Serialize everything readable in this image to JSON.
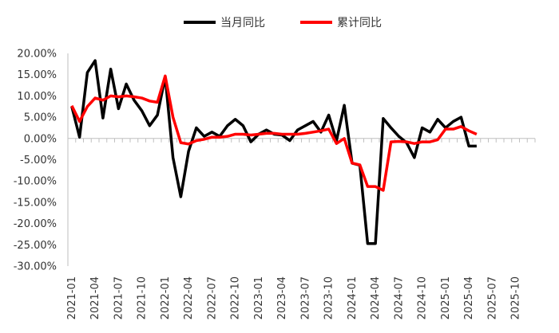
{
  "chart_data": {
    "type": "line",
    "legend_position": "top",
    "grid": false,
    "ylim": [
      -0.3,
      0.2
    ],
    "y_ticks": [
      "20.00%",
      "15.00%",
      "10.00%",
      "5.00%",
      "0.00%",
      "-5.00%",
      "-10.00%",
      "-15.00%",
      "-20.00%",
      "-25.00%",
      "-30.00%"
    ],
    "x_tick_labels": [
      "2021-01",
      "2021-04",
      "2021-07",
      "2021-10",
      "2022-01",
      "2022-04",
      "2022-07",
      "2022-10",
      "2023-01",
      "2023-04",
      "2023-07",
      "2023-10",
      "2024-01",
      "2024-04",
      "2024-07",
      "2024-10",
      "2025-01",
      "2025-04",
      "2025-07",
      "2025-10"
    ],
    "x": [
      "2021-01",
      "2021-02",
      "2021-03",
      "2021-04",
      "2021-05",
      "2021-06",
      "2021-07",
      "2021-08",
      "2021-09",
      "2021-10",
      "2021-11",
      "2021-12",
      "2022-01",
      "2022-02",
      "2022-03",
      "2022-04",
      "2022-05",
      "2022-06",
      "2022-07",
      "2022-08",
      "2022-09",
      "2022-10",
      "2022-11",
      "2022-12",
      "2023-01",
      "2023-02",
      "2023-03",
      "2023-04",
      "2023-05",
      "2023-06",
      "2023-07",
      "2023-08",
      "2023-09",
      "2023-10",
      "2023-11",
      "2023-12",
      "2024-01",
      "2024-02",
      "2024-03",
      "2024-04",
      "2024-05",
      "2024-06",
      "2024-07",
      "2024-08",
      "2024-09",
      "2024-10",
      "2024-11",
      "2024-12",
      "2025-01",
      "2025-02",
      "2025-03",
      "2025-04",
      "2025-05",
      "2025-06",
      "2025-07",
      "2025-08",
      "2025-09",
      "2025-10",
      "2025-11",
      "2025-12"
    ],
    "series": [
      {
        "name": "当月同比",
        "color": "#000000",
        "values": [
          0.075,
          0.003,
          0.155,
          0.183,
          0.048,
          0.163,
          0.07,
          0.128,
          0.09,
          0.065,
          0.03,
          0.055,
          0.145,
          -0.045,
          -0.137,
          -0.03,
          0.025,
          0.005,
          0.015,
          0.005,
          0.03,
          0.045,
          0.03,
          -0.008,
          0.01,
          0.02,
          0.01,
          0.008,
          -0.005,
          0.02,
          0.03,
          0.04,
          0.015,
          0.055,
          -0.005,
          0.078,
          -0.058,
          -0.063,
          -0.247,
          -0.247,
          0.047,
          0.025,
          0.005,
          -0.01,
          -0.045,
          0.025,
          0.015,
          0.045,
          0.025,
          0.04,
          0.05,
          -0.018,
          -0.018,
          null,
          null,
          null,
          null,
          null,
          null,
          null
        ]
      },
      {
        "name": "累计同比",
        "color": "#ff0000",
        "values": [
          0.077,
          0.04,
          0.075,
          0.095,
          0.09,
          0.1,
          0.098,
          0.1,
          0.098,
          0.095,
          0.088,
          0.085,
          0.147,
          0.05,
          -0.01,
          -0.013,
          -0.005,
          -0.002,
          0.003,
          0.003,
          0.005,
          0.01,
          0.01,
          0.008,
          0.01,
          0.012,
          0.012,
          0.01,
          0.01,
          0.01,
          0.012,
          0.015,
          0.018,
          0.022,
          -0.012,
          0.0,
          -0.058,
          -0.062,
          -0.113,
          -0.113,
          -0.122,
          -0.008,
          -0.007,
          -0.008,
          -0.012,
          -0.008,
          -0.008,
          -0.003,
          0.022,
          0.022,
          0.028,
          0.018,
          0.01,
          null,
          null,
          null,
          null,
          null,
          null,
          null
        ]
      }
    ]
  }
}
